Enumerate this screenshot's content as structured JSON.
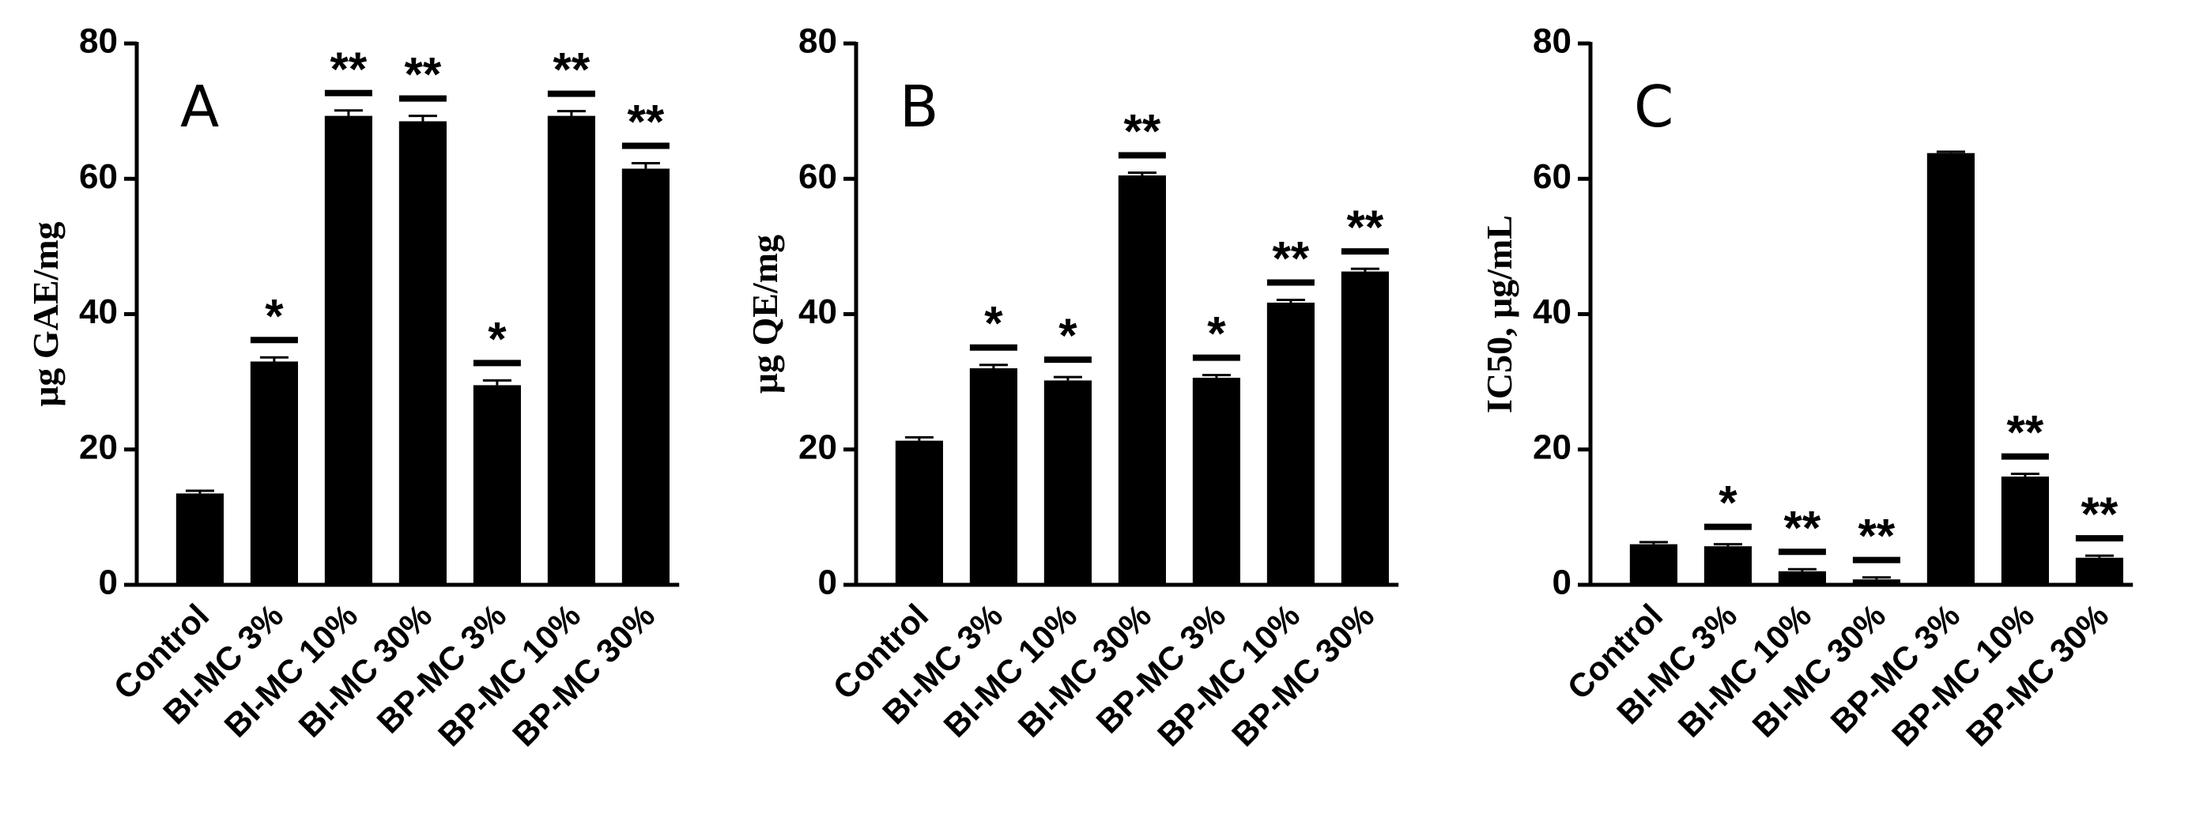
{
  "chart_data": [
    {
      "type": "bar",
      "panel_label": "A",
      "y_label": "μg GAE/mg",
      "categories": [
        "Control",
        "BI-MC 3%",
        "BI-MC 10%",
        "BI-MC 30%",
        "BP-MC 3%",
        "BP-MC 10%",
        "BP-MC 30%"
      ],
      "values": [
        13.5,
        33,
        69.3,
        68.5,
        29.5,
        69.3,
        61.5
      ],
      "errors": [
        0.4,
        0.6,
        0.8,
        0.8,
        0.7,
        0.7,
        0.8
      ],
      "significance": [
        null,
        "*",
        "**",
        "**",
        "*",
        "**",
        "**"
      ],
      "color": "#000000",
      "ylim": [
        0,
        80
      ],
      "yticks": [
        0,
        20,
        40,
        60,
        80
      ]
    },
    {
      "type": "bar",
      "panel_label": "B",
      "y_label": "μg QE/mg",
      "categories": [
        "Control",
        "BI-MC 3%",
        "BI-MC 10%",
        "BI-MC 30%",
        "BP-MC 3%",
        "BP-MC 10%",
        "BP-MC 30%"
      ],
      "values": [
        21.3,
        32,
        30.2,
        60.5,
        30.6,
        41.7,
        46.3
      ],
      "errors": [
        0.5,
        0.5,
        0.5,
        0.4,
        0.4,
        0.4,
        0.4
      ],
      "significance": [
        null,
        "*",
        "*",
        "**",
        "*",
        "**",
        "**"
      ],
      "color": "#000000",
      "ylim": [
        0,
        80
      ],
      "yticks": [
        0,
        20,
        40,
        60,
        80
      ]
    },
    {
      "type": "bar",
      "panel_label": "C",
      "y_label": "IC50, μg/mL",
      "categories": [
        "Control",
        "BI-MC 3%",
        "BI-MC 10%",
        "BI-MC 30%",
        "BP-MC 3%",
        "BP-MC 10%",
        "BP-MC 30%"
      ],
      "values": [
        6,
        5.7,
        2,
        0.8,
        63.8,
        16,
        4
      ],
      "errors": [
        0.3,
        0.3,
        0.3,
        0.3,
        0.2,
        0.4,
        0.3
      ],
      "significance": [
        null,
        "*",
        "**",
        "**",
        null,
        "**",
        "**"
      ],
      "color": "#000000",
      "ylim": [
        0,
        80
      ],
      "yticks": [
        0,
        20,
        40,
        60,
        80
      ]
    }
  ]
}
